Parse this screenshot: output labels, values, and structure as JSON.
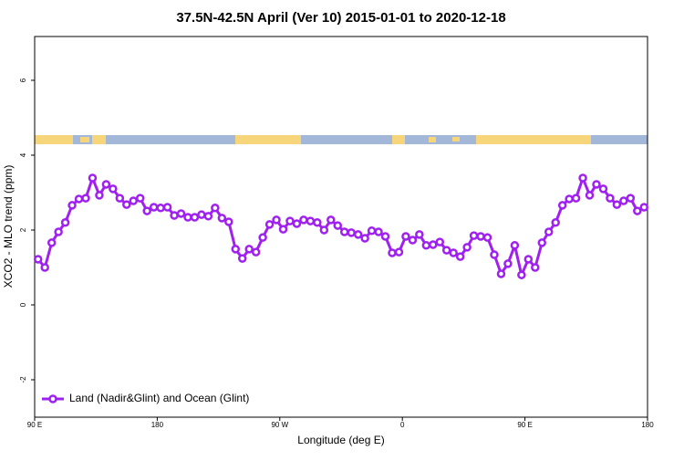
{
  "chart_data": {
    "type": "line",
    "title": "37.5N-42.5N April (Ver 10)   2015-01-01 to 2020-12-18",
    "x_label": "Longitude (deg E)",
    "y_label": "XCO2 - MLO trend (ppm)",
    "x": [
      92.5,
      97.5,
      102.5,
      107.5,
      112.5,
      117.5,
      122.5,
      127.5,
      132.5,
      137.5,
      142.5,
      147.5,
      152.5,
      157.5,
      162.5,
      167.5,
      172.5,
      177.5,
      182.5,
      187.5,
      192.5,
      197.5,
      202.5,
      207.5,
      212.5,
      217.5,
      222.5,
      227.5,
      232.5,
      237.5,
      242.5,
      247.5,
      252.5,
      257.5,
      262.5,
      267.5,
      272.5,
      277.5,
      282.5,
      287.5,
      292.5,
      297.5,
      302.5,
      307.5,
      312.5,
      317.5,
      322.5,
      327.5,
      332.5,
      337.5,
      342.5,
      347.5,
      352.5,
      357.5,
      362.5,
      367.5,
      372.5,
      377.5,
      382.5,
      387.5,
      392.5,
      397.5,
      402.5,
      407.5,
      412.5,
      417.5,
      422.5,
      427.5,
      432.5,
      437.5,
      442.5,
      447.5,
      452.5,
      457.5,
      462.5,
      467.5,
      472.5,
      477.5,
      482.5,
      487.5,
      492.5,
      497.5,
      502.5,
      507.5,
      512.5,
      517.5,
      522.5,
      527.5,
      532.5,
      537.5
    ],
    "series": [
      {
        "name": "Land (Nadir&Glint) and Ocean (Glint)",
        "color": "#a020f0",
        "values": [
          1.22,
          1.0,
          1.66,
          1.95,
          2.2,
          2.66,
          2.83,
          2.85,
          3.39,
          2.93,
          3.22,
          3.1,
          2.85,
          2.68,
          2.78,
          2.85,
          2.51,
          2.61,
          2.59,
          2.61,
          2.39,
          2.44,
          2.34,
          2.34,
          2.41,
          2.37,
          2.59,
          2.32,
          2.22,
          1.49,
          1.24,
          1.49,
          1.41,
          1.8,
          2.15,
          2.27,
          2.02,
          2.24,
          2.17,
          2.27,
          2.24,
          2.2,
          2.0,
          2.27,
          2.12,
          1.95,
          1.93,
          1.88,
          1.78,
          1.98,
          1.95,
          1.83,
          1.39,
          1.41,
          1.83,
          1.73,
          1.88,
          1.59,
          1.61,
          1.68,
          1.46,
          1.39,
          1.29,
          1.54,
          1.85,
          1.83,
          1.8,
          1.34,
          0.83,
          1.1,
          1.59,
          0.8,
          1.22,
          1.0,
          1.66,
          1.95,
          2.2,
          2.66,
          2.83,
          2.85,
          3.39,
          2.93,
          3.22,
          3.1,
          2.85,
          2.68,
          2.78,
          2.85,
          2.51,
          2.61
        ]
      }
    ],
    "xlim": [
      90,
      540
    ],
    "xticks": [
      {
        "value": 90,
        "label": "90 E"
      },
      180,
      {
        "value": 270,
        "label": "90 W"
      },
      {
        "value": 360,
        "label": "0"
      },
      {
        "value": 450,
        "label": "90 E"
      },
      {
        "value": 540,
        "label": "180"
      }
    ],
    "ylim": [
      -3,
      7.17
    ],
    "yticks": [
      -2,
      0,
      2,
      4,
      6
    ],
    "legend": "bottom-left"
  }
}
